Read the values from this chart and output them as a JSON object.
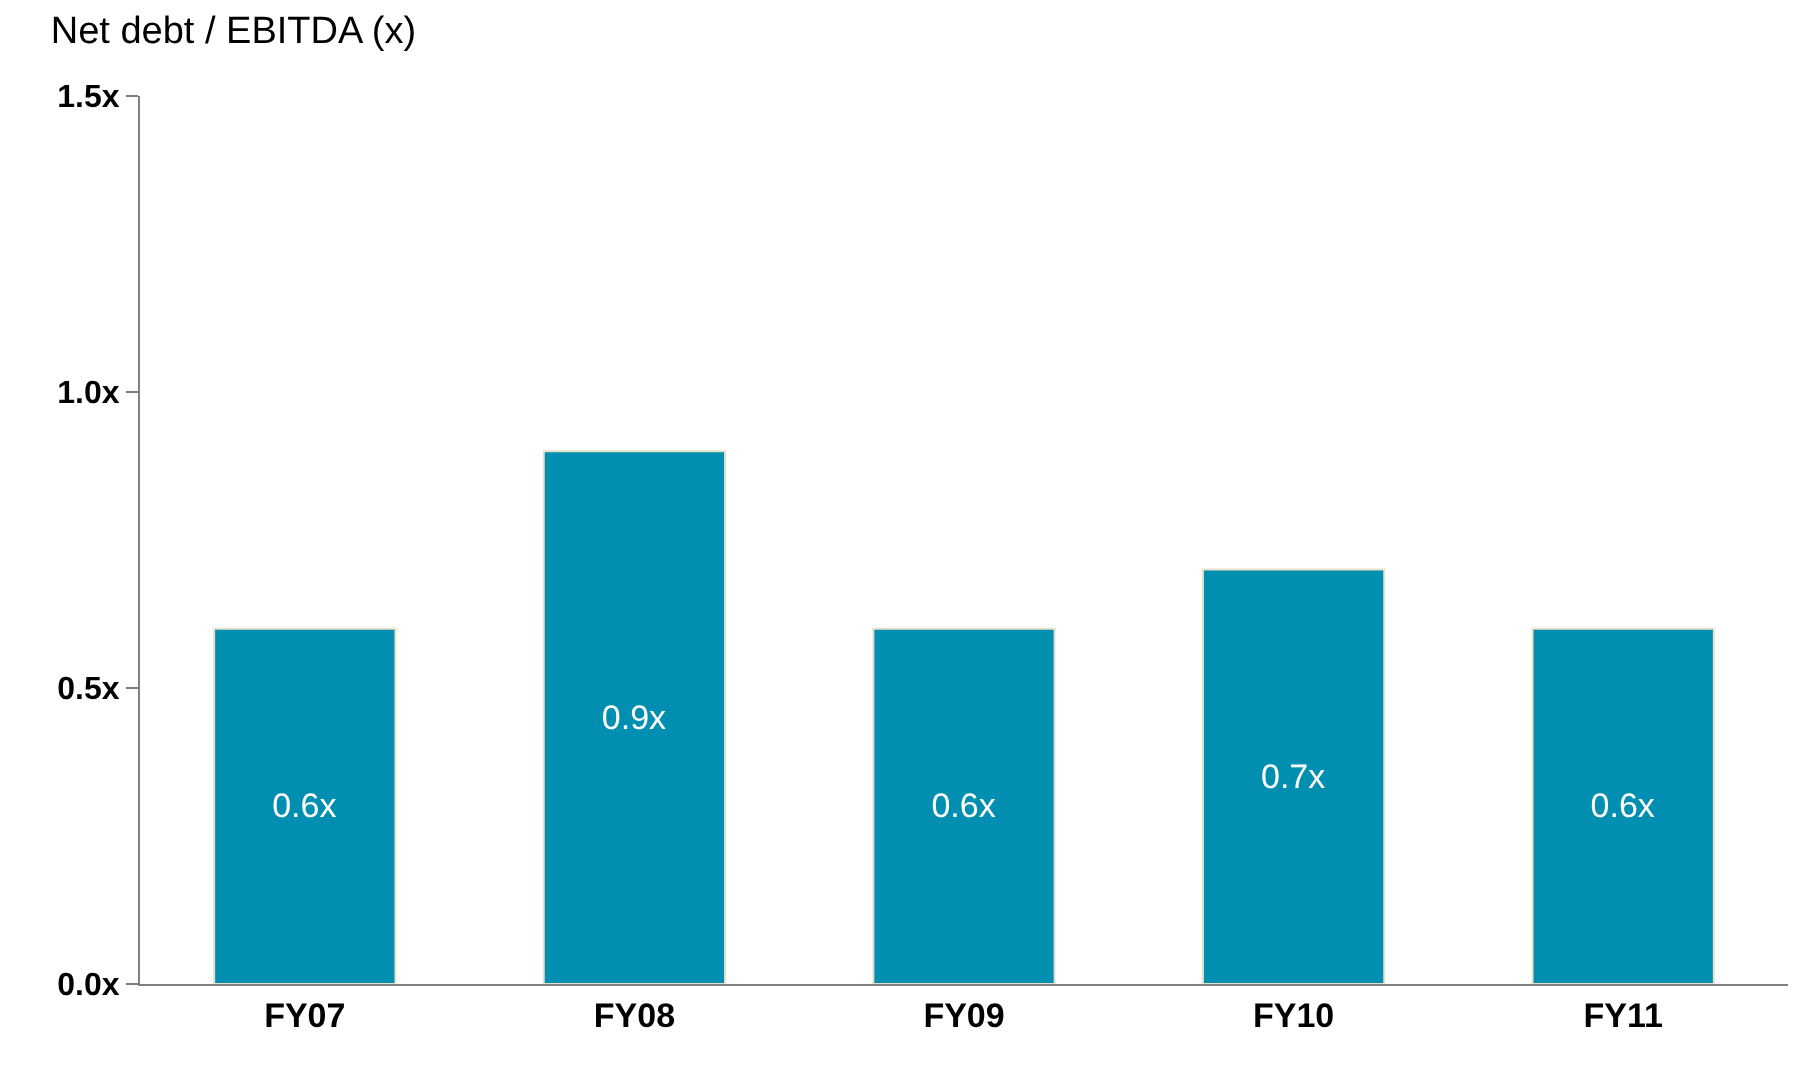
{
  "chart_data": {
    "type": "bar",
    "title": "Net debt / EBITDA (x)",
    "categories": [
      "FY07",
      "FY08",
      "FY09",
      "FY10",
      "FY11"
    ],
    "values": [
      0.6,
      0.9,
      0.6,
      0.7,
      0.6
    ],
    "value_labels": [
      "0.6x",
      "0.9x",
      "0.6x",
      "0.7x",
      "0.6x"
    ],
    "color": "#008fb0",
    "ylim": [
      0,
      1.5
    ],
    "yticks": [
      {
        "value": 0,
        "label": "0.0x"
      },
      {
        "value": 0.5,
        "label": "0.5x"
      },
      {
        "value": 1.0,
        "label": "1.0x"
      },
      {
        "value": 1.5,
        "label": "1.5x"
      }
    ],
    "legend": false
  }
}
